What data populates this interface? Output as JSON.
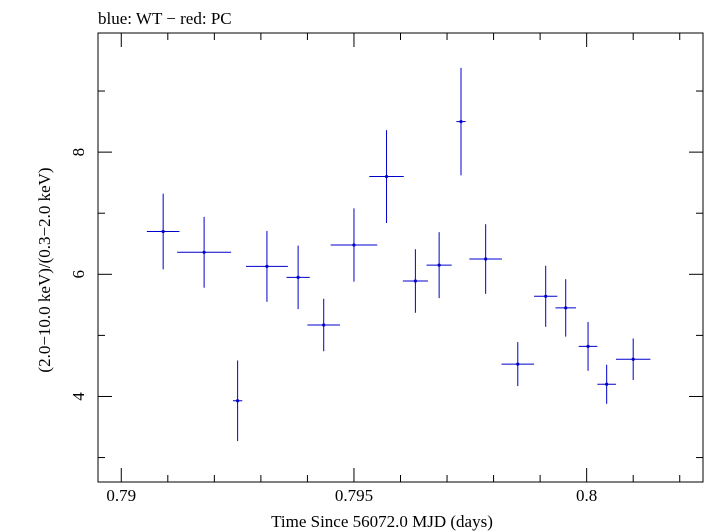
{
  "chart_data": {
    "type": "scatter",
    "title": "blue: WT − red: PC",
    "xlabel": "Time Since 56072.0 MJD (days)",
    "ylabel": "(2.0−10.0 keV)/(0.3−2.0 keV)",
    "xlim": [
      0.7895,
      0.8025
    ],
    "ylim": [
      2.6,
      9.95
    ],
    "xticks": [
      0.79,
      0.795,
      0.8
    ],
    "xtick_labels": [
      "0.79",
      "0.795",
      "0.8"
    ],
    "yticks": [
      4,
      6,
      8
    ],
    "ytick_labels": [
      "4",
      "6",
      "8"
    ],
    "grid": false,
    "colors": {
      "series": "#0000cc",
      "axes": "#000000"
    },
    "series": [
      {
        "marker": "cross-with-errorbars",
        "points": [
          {
            "x": 0.7909,
            "xerr": 0.00035,
            "y": 6.7,
            "yerr": 0.62
          },
          {
            "x": 0.79178,
            "xerr": 0.00058,
            "y": 6.36,
            "yerr": 0.58
          },
          {
            "x": 0.7925,
            "xerr": 0.0001,
            "y": 3.93,
            "yerr": 0.66
          },
          {
            "x": 0.79313,
            "xerr": 0.00045,
            "y": 6.13,
            "yerr": 0.58
          },
          {
            "x": 0.7938,
            "xerr": 0.00025,
            "y": 5.95,
            "yerr": 0.52
          },
          {
            "x": 0.79435,
            "xerr": 0.00035,
            "y": 5.17,
            "yerr": 0.43
          },
          {
            "x": 0.795,
            "xerr": 0.0005,
            "y": 6.48,
            "yerr": 0.6
          },
          {
            "x": 0.7957,
            "xerr": 0.00037,
            "y": 7.6,
            "yerr": 0.76
          },
          {
            "x": 0.79632,
            "xerr": 0.00027,
            "y": 5.89,
            "yerr": 0.52
          },
          {
            "x": 0.79683,
            "xerr": 0.00027,
            "y": 6.15,
            "yerr": 0.54
          },
          {
            "x": 0.7973,
            "xerr": 0.0001,
            "y": 8.5,
            "yerr": 0.88
          },
          {
            "x": 0.79783,
            "xerr": 0.00035,
            "y": 6.25,
            "yerr": 0.57
          },
          {
            "x": 0.79852,
            "xerr": 0.00035,
            "y": 4.53,
            "yerr": 0.36
          },
          {
            "x": 0.79912,
            "xerr": 0.00025,
            "y": 5.64,
            "yerr": 0.5
          },
          {
            "x": 0.79955,
            "xerr": 0.00022,
            "y": 5.45,
            "yerr": 0.47
          },
          {
            "x": 0.80003,
            "xerr": 0.0002,
            "y": 4.82,
            "yerr": 0.4
          },
          {
            "x": 0.80043,
            "xerr": 0.0002,
            "y": 4.2,
            "yerr": 0.32
          },
          {
            "x": 0.801,
            "xerr": 0.00037,
            "y": 4.61,
            "yerr": 0.34
          }
        ]
      }
    ]
  }
}
